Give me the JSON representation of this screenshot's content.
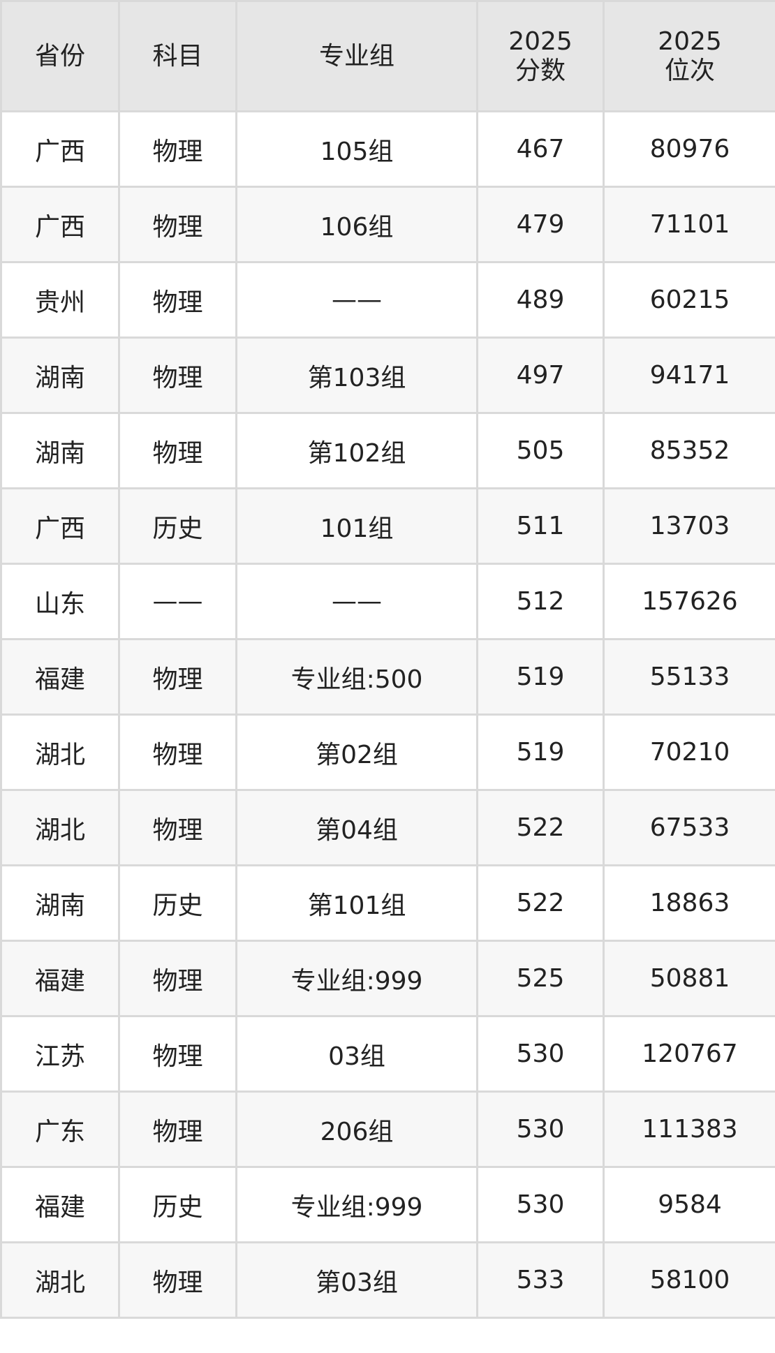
{
  "table": {
    "headers": [
      {
        "lines": [
          "省份"
        ]
      },
      {
        "lines": [
          "科目"
        ]
      },
      {
        "lines": [
          "专业组"
        ]
      },
      {
        "lines": [
          "2025",
          "分数"
        ]
      },
      {
        "lines": [
          "2025",
          "位次"
        ]
      }
    ],
    "rows": [
      [
        "广西",
        "物理",
        "105组",
        "467",
        "80976"
      ],
      [
        "广西",
        "物理",
        "106组",
        "479",
        "71101"
      ],
      [
        "贵州",
        "物理",
        "——",
        "489",
        "60215"
      ],
      [
        "湖南",
        "物理",
        "第103组",
        "497",
        "94171"
      ],
      [
        "湖南",
        "物理",
        "第102组",
        "505",
        "85352"
      ],
      [
        "广西",
        "历史",
        "101组",
        "511",
        "13703"
      ],
      [
        "山东",
        "——",
        "——",
        "512",
        "157626"
      ],
      [
        "福建",
        "物理",
        "专业组:500",
        "519",
        "55133"
      ],
      [
        "湖北",
        "物理",
        "第02组",
        "519",
        "70210"
      ],
      [
        "湖北",
        "物理",
        "第04组",
        "522",
        "67533"
      ],
      [
        "湖南",
        "历史",
        "第101组",
        "522",
        "18863"
      ],
      [
        "福建",
        "物理",
        "专业组:999",
        "525",
        "50881"
      ],
      [
        "江苏",
        "物理",
        "03组",
        "530",
        "120767"
      ],
      [
        "广东",
        "物理",
        "206组",
        "530",
        "111383"
      ],
      [
        "福建",
        "历史",
        "专业组:999",
        "530",
        "9584"
      ],
      [
        "湖北",
        "物理",
        "第03组",
        "533",
        "58100"
      ]
    ]
  }
}
